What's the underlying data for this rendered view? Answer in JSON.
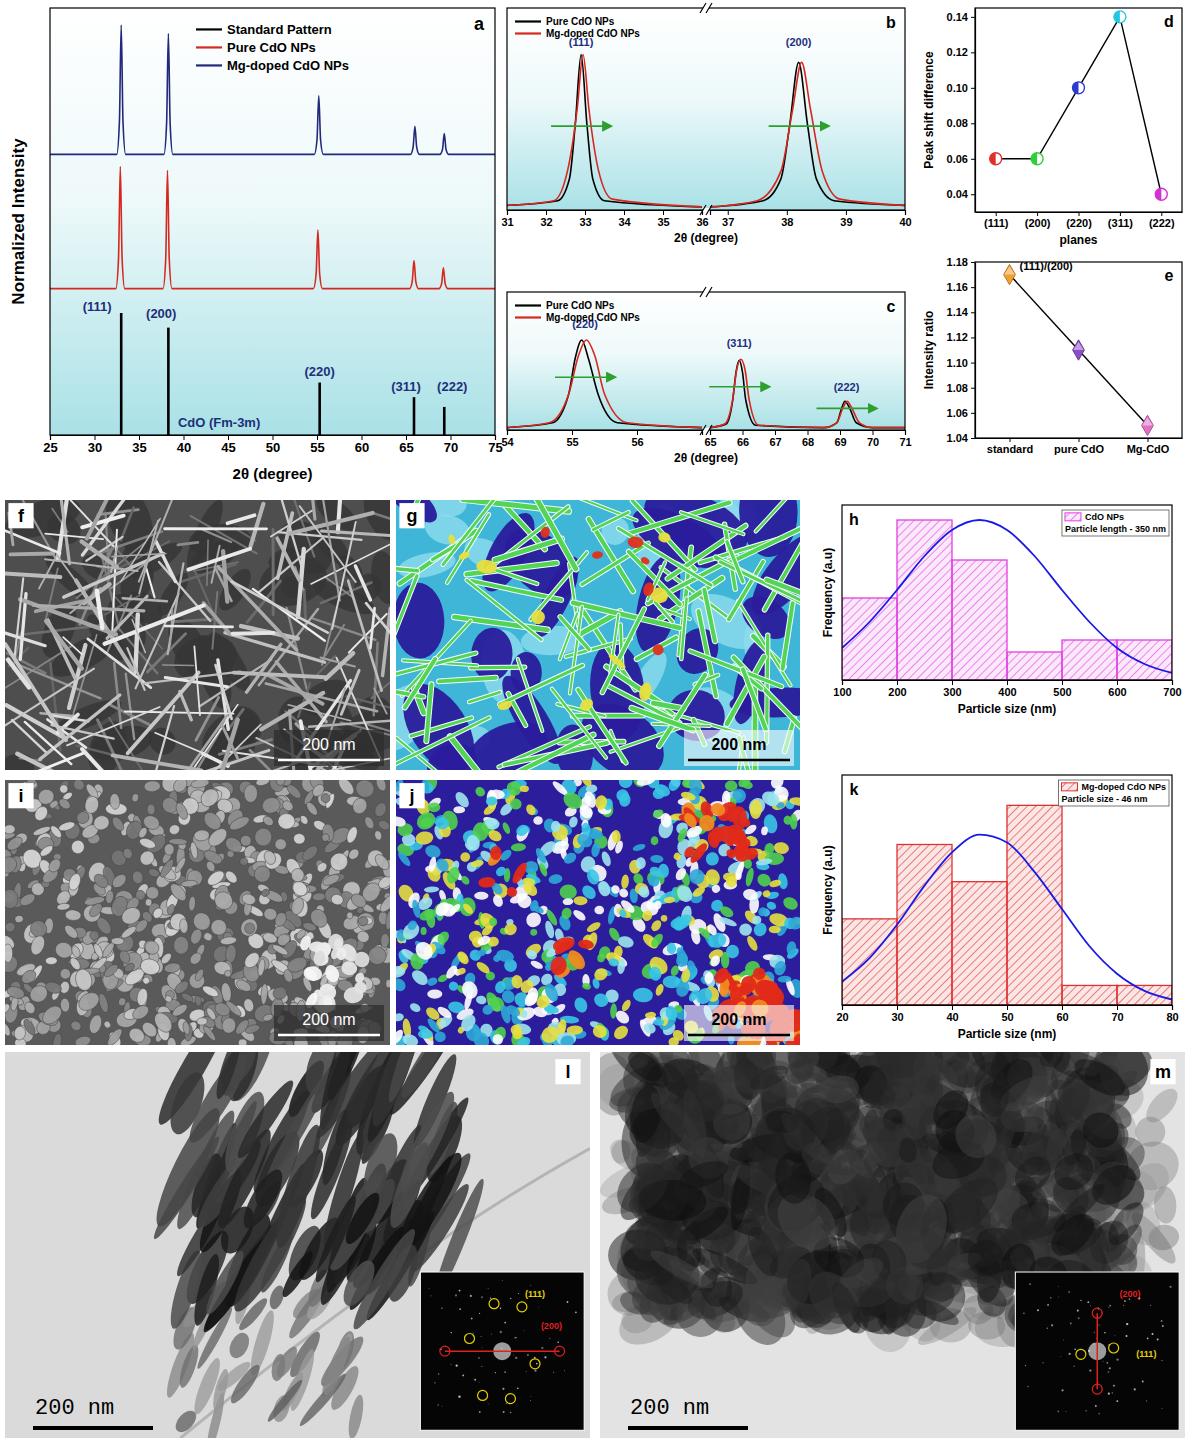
{
  "chart_data": [
    {
      "type": "line",
      "panel": "a",
      "xlabel": "2θ (degree)",
      "ylabel": "Normalized Intensity",
      "xlim": [
        25,
        75
      ],
      "xticks": [
        25,
        30,
        35,
        40,
        45,
        50,
        55,
        60,
        65,
        70,
        75
      ],
      "ylim": [
        0,
        3.5
      ],
      "tick_labels": "x",
      "legend": "upper center",
      "series": [
        {
          "name": "Standard Pattern",
          "type": "bar",
          "color": "#000000",
          "x": [
            33.0,
            38.3,
            55.3,
            65.9,
            69.3
          ],
          "values": [
            1.0,
            0.88,
            0.43,
            0.31,
            0.23
          ]
        },
        {
          "name": "Pure CdO NPs",
          "type": "line",
          "color": "#d6281e",
          "x": [
            25,
            32.4,
            32.7,
            32.9,
            33.1,
            33.4,
            37.7,
            38.0,
            38.2,
            38.4,
            38.7,
            54.6,
            54.9,
            55.1,
            55.3,
            55.6,
            65.4,
            65.7,
            65.9,
            66.1,
            66.4,
            68.7,
            69.0,
            69.2,
            69.4,
            69.7,
            75
          ],
          "values": [
            1.2,
            1.2,
            1.45,
            2.2,
            1.45,
            1.2,
            1.2,
            1.44,
            2.17,
            1.44,
            1.2,
            1.2,
            1.32,
            1.68,
            1.32,
            1.2,
            1.2,
            1.26,
            1.43,
            1.26,
            1.2,
            1.2,
            1.24,
            1.37,
            1.24,
            1.2,
            1.2
          ]
        },
        {
          "name": "Mg-doped CdO NPs",
          "type": "line",
          "color": "#20297a",
          "x": [
            25,
            32.5,
            32.8,
            33.0,
            33.2,
            33.5,
            37.8,
            38.1,
            38.3,
            38.5,
            38.8,
            54.7,
            55.0,
            55.2,
            55.4,
            55.7,
            65.5,
            65.8,
            66.0,
            66.2,
            66.5,
            68.8,
            69.1,
            69.3,
            69.5,
            69.8,
            75
          ],
          "values": [
            2.3,
            2.3,
            2.57,
            3.36,
            2.57,
            2.3,
            2.3,
            2.55,
            3.29,
            2.55,
            2.3,
            2.3,
            2.42,
            2.78,
            2.42,
            2.3,
            2.3,
            2.36,
            2.53,
            2.36,
            2.3,
            2.3,
            2.34,
            2.47,
            2.34,
            2.3,
            2.3
          ]
        }
      ],
      "annotations": [
        {
          "text": "(111)",
          "x": 30.3,
          "y": 1.05
        },
        {
          "text": "(200)",
          "x": 37.5,
          "y": 1.0
        },
        {
          "text": "(220)",
          "x": 55.3,
          "y": 0.52
        },
        {
          "text": "(311)",
          "x": 65.0,
          "y": 0.4
        },
        {
          "text": "(222)",
          "x": 70.2,
          "y": 0.4
        },
        {
          "text": "CdO (Fm-3m)",
          "x": 44,
          "y": 0.1
        }
      ]
    },
    {
      "type": "line",
      "panel": "b",
      "xlabel": "2θ (degree)",
      "xlim": [
        [
          31,
          36
        ],
        [
          36.7,
          40
        ]
      ],
      "xticks": [
        [
          31,
          32,
          33,
          34,
          35,
          36
        ],
        [
          37,
          38,
          39,
          40
        ]
      ],
      "ylim": [
        0,
        1.3
      ],
      "tick_labels": "x",
      "legend": "upper left",
      "series": [
        {
          "name": "Pure CdO NPs",
          "color": "#000000",
          "x": [
            31,
            32.3,
            32.6,
            32.75,
            32.9,
            33.05,
            33.2,
            33.5,
            36,
            36.7,
            37.6,
            37.9,
            38.05,
            38.2,
            38.35,
            38.5,
            38.8,
            40
          ],
          "values": [
            0.03,
            0.06,
            0.2,
            0.55,
            1.0,
            0.55,
            0.2,
            0.06,
            0.02,
            0.02,
            0.06,
            0.2,
            0.55,
            0.95,
            0.55,
            0.2,
            0.06,
            0.03
          ]
        },
        {
          "name": "Mg-doped CdO NPs",
          "color": "#d6281e",
          "x": [
            31,
            32.2,
            32.55,
            32.8,
            32.95,
            33.1,
            33.35,
            33.7,
            36,
            36.7,
            37.5,
            37.9,
            38.1,
            38.25,
            38.4,
            38.6,
            38.9,
            40
          ],
          "values": [
            0.03,
            0.06,
            0.25,
            0.65,
            1.0,
            0.65,
            0.25,
            0.07,
            0.02,
            0.02,
            0.06,
            0.25,
            0.65,
            0.95,
            0.65,
            0.25,
            0.07,
            0.03
          ]
        }
      ],
      "annotations": [
        {
          "text": "(111)",
          "x": 32.9,
          "y": 1.08
        },
        {
          "text": "(200)",
          "x": 38.2,
          "y": 1.08
        }
      ]
    },
    {
      "type": "line",
      "panel": "c",
      "xlabel": "2θ (degree)",
      "xlim": [
        [
          54,
          57
        ],
        [
          65,
          71
        ]
      ],
      "xticks": [
        [
          54,
          55,
          56
        ],
        [
          65,
          66,
          67,
          68,
          69,
          70,
          71
        ]
      ],
      "ylim": [
        0,
        1.15
      ],
      "tick_labels": "x",
      "legend": "upper left",
      "series": [
        {
          "name": "Pure CdO NPs",
          "color": "#000000",
          "x": [
            54,
            54.7,
            54.95,
            55.05,
            55.15,
            55.25,
            55.4,
            55.7,
            57,
            65,
            65.5,
            65.7,
            65.8,
            65.9,
            66.0,
            66.1,
            66.4,
            68.5,
            68.9,
            69.05,
            69.15,
            69.3,
            69.5,
            70,
            71
          ],
          "values": [
            0.02,
            0.06,
            0.3,
            0.6,
            0.75,
            0.6,
            0.3,
            0.06,
            0.02,
            0.02,
            0.05,
            0.25,
            0.48,
            0.58,
            0.48,
            0.25,
            0.04,
            0.02,
            0.06,
            0.18,
            0.24,
            0.18,
            0.06,
            0.02,
            0.02
          ]
        },
        {
          "name": "Mg-doped CdO NPs",
          "color": "#d6281e",
          "x": [
            54,
            54.65,
            54.95,
            55.1,
            55.22,
            55.35,
            55.5,
            55.85,
            57,
            65,
            65.45,
            65.7,
            65.82,
            65.95,
            66.08,
            66.2,
            66.5,
            68.5,
            68.9,
            69.1,
            69.22,
            69.35,
            69.6,
            70,
            71
          ],
          "values": [
            0.02,
            0.06,
            0.3,
            0.62,
            0.75,
            0.62,
            0.3,
            0.06,
            0.02,
            0.02,
            0.05,
            0.26,
            0.5,
            0.59,
            0.5,
            0.26,
            0.04,
            0.02,
            0.06,
            0.19,
            0.24,
            0.19,
            0.06,
            0.02,
            0.02
          ]
        }
      ],
      "annotations": [
        {
          "text": "(220)",
          "x": 55.2,
          "y": 0.88
        },
        {
          "text": "(311)",
          "x": 65.9,
          "y": 0.72
        },
        {
          "text": "(222)",
          "x": 69.2,
          "y": 0.36
        }
      ]
    },
    {
      "type": "line",
      "panel": "d",
      "marker": "circle",
      "color": "#000000",
      "xlabel": "planes",
      "ylabel": "Peak shift difference",
      "categories": [
        "(111)",
        "(200)",
        "(220)",
        "(311)",
        "(222)"
      ],
      "values": [
        0.06,
        0.06,
        0.1,
        0.14,
        0.04
      ],
      "colors": [
        "#e0302a",
        "#2fcf3a",
        "#2b3bd1",
        "#22c6e0",
        "#d431d4"
      ],
      "ylim": [
        0.03,
        0.145
      ],
      "yticks": [
        0.04,
        0.06,
        0.08,
        {
          "value": 0.1,
          "label": "0.10"
        },
        0.12,
        0.14
      ]
    },
    {
      "type": "line",
      "panel": "e",
      "marker": "diamond",
      "color": "#000000",
      "ylabel": "Intensity ratio",
      "categories": [
        "standard",
        "pure CdO",
        "Mg-CdO"
      ],
      "values": [
        1.17,
        1.11,
        1.05
      ],
      "colors": [
        "#f0a030",
        "#8a4fc8",
        "#e070c8"
      ],
      "ylim": [
        1.04,
        1.18
      ],
      "yticks": [
        1.04,
        1.06,
        1.08,
        {
          "value": 1.1,
          "label": "1.10"
        },
        1.12,
        1.14,
        1.16,
        1.18
      ],
      "annotations": [
        {
          "text": "(111)/(200)"
        }
      ]
    },
    {
      "type": "image",
      "panel": "f",
      "annotations": [
        {
          "text": "200 nm"
        }
      ]
    },
    {
      "type": "image",
      "panel": "g",
      "annotations": [
        {
          "text": "200 nm"
        }
      ]
    },
    {
      "type": "histogram",
      "panel": "h",
      "name": "CdO NPs",
      "color": "#e040e0",
      "xlabel": "Particle size (nm)",
      "ylabel": "Frequency (a.u)",
      "bins": [
        100,
        200,
        300,
        400,
        500,
        600,
        700
      ],
      "values": [
        4.1,
        8.0,
        6.0,
        1.4,
        2.0,
        2.0
      ],
      "fit": {
        "color": "#1a1ae6",
        "x": [
          100,
          150,
          200,
          250,
          300,
          350,
          400,
          450,
          500,
          550,
          600,
          650,
          700
        ],
        "values": [
          1.6,
          2.9,
          4.5,
          6.2,
          7.5,
          8.0,
          7.5,
          6.2,
          4.5,
          2.9,
          1.6,
          0.8,
          0.35
        ]
      },
      "xlim": [
        100,
        700
      ],
      "xticks": [
        100,
        200,
        300,
        400,
        500,
        600,
        700
      ],
      "ylim": [
        0,
        8.75
      ],
      "tick_labels": "x",
      "legend": "upper right",
      "annotations": [
        {
          "text": "Particle length - 350 nm"
        }
      ]
    },
    {
      "type": "image",
      "panel": "i",
      "annotations": [
        {
          "text": "200 nm"
        }
      ]
    },
    {
      "type": "image",
      "panel": "j",
      "annotations": [
        {
          "text": "200 nm"
        }
      ]
    },
    {
      "type": "histogram",
      "panel": "k",
      "name": "Mg-doped CdO NPs",
      "color": "#e03030",
      "xlabel": "Particle size (nm)",
      "ylabel": "Frequency (a.u)",
      "bins": [
        20,
        30,
        40,
        50,
        60,
        70,
        80
      ],
      "values": [
        4.4,
        8.2,
        6.3,
        10.2,
        1.0,
        1.0
      ],
      "fit": {
        "color": "#1a1ae6",
        "x": [
          20,
          25,
          30,
          35,
          40,
          45,
          50,
          55,
          60,
          65,
          70,
          75,
          80
        ],
        "values": [
          1.2,
          2.4,
          4.1,
          6.1,
          7.8,
          8.7,
          8.3,
          6.8,
          4.9,
          3.0,
          1.6,
          0.72,
          0.28
        ]
      },
      "xlim": [
        20,
        80
      ],
      "xticks": [
        20,
        30,
        40,
        50,
        60,
        70,
        80
      ],
      "ylim": [
        0,
        11.75
      ],
      "tick_labels": "x",
      "legend": "upper right",
      "annotations": [
        {
          "text": "Particle size - 46 nm"
        }
      ]
    },
    {
      "type": "image",
      "panel": "l",
      "annotations": [
        {
          "text": "200 nm"
        },
        {
          "text": "(111)"
        },
        {
          "text": "(200)"
        }
      ]
    },
    {
      "type": "image",
      "panel": "m",
      "annotations": [
        {
          "text": "200 nm"
        },
        {
          "text": "(111)"
        },
        {
          "text": "(200)"
        }
      ]
    }
  ]
}
